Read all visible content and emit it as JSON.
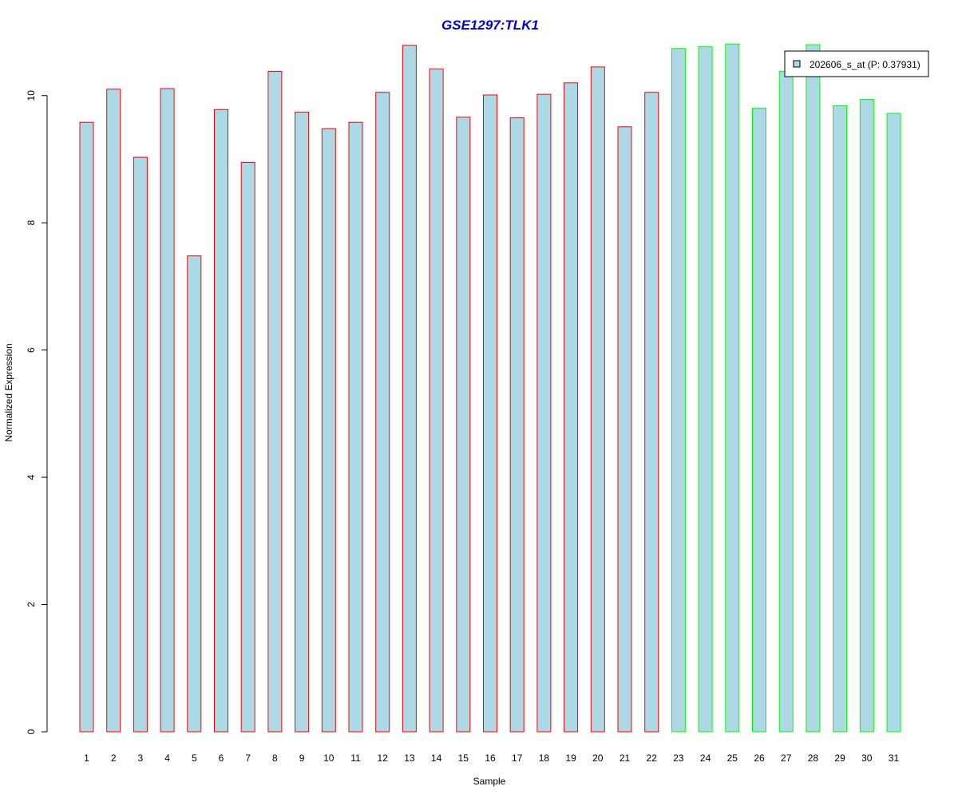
{
  "chart_data": {
    "type": "bar",
    "title": "GSE1297:TLK1",
    "xlabel": "Sample",
    "ylabel": "Normalized Expression",
    "categories": [
      "1",
      "2",
      "3",
      "4",
      "5",
      "6",
      "7",
      "8",
      "9",
      "10",
      "11",
      "12",
      "13",
      "14",
      "15",
      "16",
      "17",
      "18",
      "19",
      "20",
      "21",
      "22",
      "23",
      "24",
      "25",
      "26",
      "27",
      "28",
      "29",
      "30",
      "31"
    ],
    "values": [
      9.58,
      10.1,
      9.03,
      10.11,
      7.48,
      9.78,
      8.95,
      10.38,
      9.74,
      9.48,
      9.58,
      10.05,
      10.79,
      10.42,
      9.66,
      10.01,
      9.65,
      10.02,
      10.2,
      10.45,
      9.51,
      10.05,
      10.74,
      10.77,
      10.81,
      9.8,
      10.38,
      10.8,
      9.84,
      9.94,
      9.72
    ],
    "groups": [
      "red",
      "red",
      "red",
      "red",
      "red",
      "red",
      "red",
      "red",
      "red",
      "red",
      "red",
      "red",
      "red",
      "red",
      "red",
      "red",
      "red",
      "red",
      "red",
      "red",
      "red",
      "red",
      "green",
      "green",
      "green",
      "green",
      "green",
      "green",
      "green",
      "green",
      "green"
    ],
    "ylim": [
      0,
      10.9
    ],
    "yticks": [
      "0",
      "2",
      "4",
      "6",
      "8",
      "10"
    ],
    "grid": false,
    "legend": {
      "label": "202606_s_at (P: 0.37931)",
      "placement": "top-right"
    },
    "colors": {
      "bar_fill": "#add8e6",
      "group_red": "#ff0000",
      "group_green": "#00ff00",
      "title": "#0000cc",
      "axis": "#000000"
    }
  }
}
